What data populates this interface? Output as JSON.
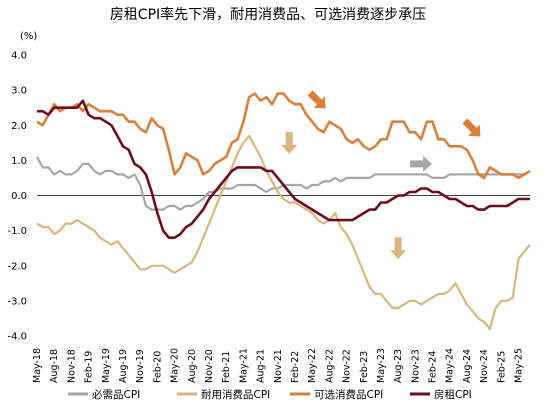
{
  "chart_data": {
    "type": "line",
    "title": "房租CPI率先下滑，耐用消费品、可选消费逐步承压",
    "ylabel": "(%)",
    "ylim": [
      -4.0,
      4.0
    ],
    "yticks": [
      "4.0",
      "3.0",
      "2.0",
      "1.0",
      "0.0",
      "-1.0",
      "-2.0",
      "-3.0",
      "-4.0"
    ],
    "yticks_values": [
      4,
      3,
      2,
      1,
      0,
      -1,
      -2,
      -3,
      -4
    ],
    "xtick_labels": [
      "May-18",
      "Aug-18",
      "Nov-18",
      "Feb-19",
      "May-19",
      "Aug-19",
      "Nov-19",
      "Feb-20",
      "May-20",
      "Aug-20",
      "Nov-20",
      "Feb-21",
      "May-21",
      "Aug-21",
      "Nov-21",
      "Feb-22",
      "May-22",
      "Aug-22",
      "Nov-22",
      "Feb-23",
      "May-23",
      "Aug-23",
      "Nov-23",
      "Feb-24",
      "May-24",
      "Aug-24",
      "Nov-24",
      "Feb-25",
      "May-25"
    ],
    "grid": false,
    "legend_position": "bottom",
    "series": [
      {
        "name": "必需品CPI",
        "color": "#a6a6a6",
        "values": [
          1.1,
          0.8,
          0.8,
          0.6,
          0.7,
          0.6,
          0.6,
          0.7,
          0.9,
          0.9,
          0.7,
          0.6,
          0.7,
          0.7,
          0.6,
          0.6,
          0.5,
          0.6,
          0.3,
          -0.3,
          -0.4,
          -0.4,
          -0.4,
          -0.3,
          -0.3,
          -0.4,
          -0.3,
          -0.3,
          -0.2,
          -0.1,
          0.1,
          0.1,
          0.2,
          0.2,
          0.2,
          0.3,
          0.3,
          0.3,
          0.3,
          0.2,
          0.1,
          0.2,
          0.2,
          0.3,
          0.3,
          0.3,
          0.3,
          0.2,
          0.3,
          0.3,
          0.4,
          0.4,
          0.5,
          0.4,
          0.5,
          0.5,
          0.5,
          0.5,
          0.5,
          0.6,
          0.6,
          0.6,
          0.6,
          0.6,
          0.6,
          0.6,
          0.6,
          0.6,
          0.6,
          0.5,
          0.5,
          0.5,
          0.6,
          0.6,
          0.6,
          0.6,
          0.6,
          0.6,
          0.6,
          0.6,
          0.6,
          0.6,
          0.6,
          0.6,
          0.6,
          0.6,
          0.7
        ]
      },
      {
        "name": "耐用消费品CPI",
        "color": "#d9b580",
        "values": [
          -0.8,
          -0.9,
          -0.9,
          -1.1,
          -1.0,
          -0.8,
          -0.8,
          -0.7,
          -0.8,
          -0.9,
          -1.0,
          -1.2,
          -1.3,
          -1.4,
          -1.3,
          -1.5,
          -1.7,
          -1.9,
          -2.1,
          -2.1,
          -2.0,
          -2.0,
          -2.0,
          -2.1,
          -2.2,
          -2.1,
          -2.0,
          -1.9,
          -1.6,
          -1.2,
          -0.8,
          -0.4,
          0.0,
          0.4,
          0.8,
          1.2,
          1.5,
          1.7,
          1.4,
          1.1,
          0.7,
          0.4,
          0.1,
          -0.1,
          -0.2,
          -0.2,
          -0.3,
          -0.4,
          -0.5,
          -0.7,
          -0.8,
          -0.7,
          -0.5,
          -0.9,
          -1.1,
          -1.4,
          -1.8,
          -2.2,
          -2.6,
          -2.8,
          -2.8,
          -3.0,
          -3.2,
          -3.2,
          -3.1,
          -3.0,
          -3.0,
          -3.1,
          -3.0,
          -2.9,
          -2.8,
          -2.8,
          -2.7,
          -2.5,
          -2.8,
          -3.1,
          -3.3,
          -3.5,
          -3.6,
          -3.8,
          -3.2,
          -3.0,
          -3.0,
          -2.9,
          -1.8,
          -1.6,
          -1.4
        ]
      },
      {
        "name": "可选消费品CPI",
        "color": "#d9803d",
        "values": [
          2.1,
          2.0,
          2.3,
          2.6,
          2.4,
          2.5,
          2.5,
          2.6,
          2.4,
          2.6,
          2.5,
          2.4,
          2.4,
          2.4,
          2.3,
          2.3,
          2.1,
          2.1,
          1.9,
          1.8,
          2.2,
          2.0,
          1.9,
          1.3,
          0.6,
          0.8,
          1.2,
          1.1,
          1.0,
          0.6,
          0.7,
          0.9,
          1.0,
          1.1,
          1.5,
          1.6,
          2.1,
          2.8,
          2.9,
          2.7,
          2.8,
          2.6,
          2.9,
          2.9,
          2.7,
          2.6,
          2.6,
          2.3,
          2.1,
          1.9,
          1.8,
          2.1,
          2.0,
          1.9,
          1.6,
          1.5,
          1.6,
          1.4,
          1.3,
          1.4,
          1.6,
          1.6,
          2.1,
          2.1,
          2.1,
          1.8,
          1.8,
          1.6,
          2.1,
          2.1,
          1.6,
          1.6,
          1.4,
          1.4,
          1.4,
          1.3,
          1.0,
          0.6,
          0.5,
          0.8,
          0.7,
          0.6,
          0.6,
          0.6,
          0.5,
          0.6,
          0.7
        ]
      },
      {
        "name": "房租CPI",
        "color": "#6b0f1a",
        "values": [
          2.4,
          2.4,
          2.3,
          2.5,
          2.5,
          2.5,
          2.5,
          2.5,
          2.7,
          2.3,
          2.2,
          2.2,
          2.1,
          2.0,
          1.7,
          1.4,
          1.3,
          0.9,
          0.8,
          0.6,
          0.1,
          -0.5,
          -1.0,
          -1.2,
          -1.2,
          -1.1,
          -0.9,
          -0.8,
          -0.6,
          -0.4,
          -0.1,
          0.1,
          0.3,
          0.5,
          0.7,
          0.8,
          0.8,
          0.8,
          0.8,
          0.8,
          0.7,
          0.7,
          0.5,
          0.3,
          0.1,
          -0.1,
          -0.2,
          -0.3,
          -0.4,
          -0.5,
          -0.6,
          -0.7,
          -0.7,
          -0.7,
          -0.7,
          -0.7,
          -0.6,
          -0.5,
          -0.4,
          -0.4,
          -0.2,
          -0.2,
          -0.1,
          0.0,
          0.0,
          0.1,
          0.1,
          0.2,
          0.2,
          0.1,
          0.1,
          0.0,
          -0.1,
          -0.1,
          -0.2,
          -0.3,
          -0.3,
          -0.4,
          -0.4,
          -0.3,
          -0.3,
          -0.3,
          -0.3,
          -0.2,
          -0.1,
          -0.1,
          -0.1
        ]
      }
    ],
    "annotations": [
      {
        "type": "arrow",
        "color": "#d9803d",
        "direction": "down-right",
        "x_index": 49,
        "y": 2.7
      },
      {
        "type": "arrow",
        "color": "#d9b580",
        "direction": "down",
        "x_index": 44,
        "y": 1.5
      },
      {
        "type": "arrow",
        "color": "#a6a6a6",
        "direction": "right",
        "x_index": 67,
        "y": 0.9
      },
      {
        "type": "arrow",
        "color": "#d9803d",
        "direction": "down-right",
        "x_index": 76,
        "y": 1.9
      },
      {
        "type": "arrow",
        "color": "#d9b580",
        "direction": "down",
        "x_index": 63,
        "y": -1.5
      }
    ]
  }
}
